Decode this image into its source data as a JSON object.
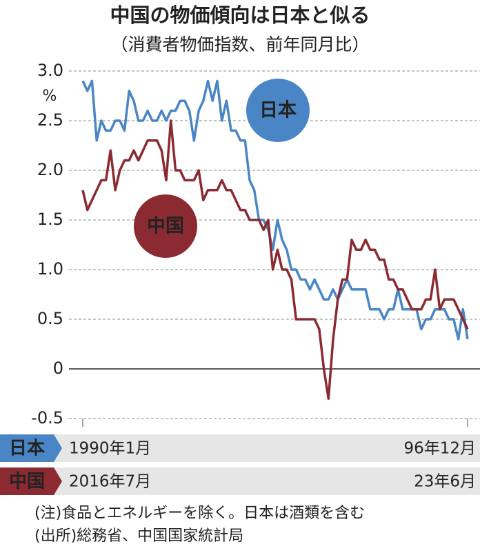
{
  "chart_data": {
    "type": "line",
    "title": "中国の物価傾向は日本と似る",
    "subtitle": "（消費者物価指数、前年同月比）",
    "y_unit": "%",
    "ylim": [
      -0.5,
      3
    ],
    "yticks": [
      {
        "value": 3,
        "label": "3.0"
      },
      2.5,
      {
        "value": 2,
        "label": "2.0"
      },
      1.5,
      {
        "value": 1,
        "label": "1.0"
      },
      0.5,
      0,
      -0.5
    ],
    "grid": true,
    "series": [
      {
        "name": "日本",
        "color": "#4a86c5",
        "start_label": "1990年1月",
        "end_label": "96年12月",
        "values": [
          2.9,
          2.8,
          2.9,
          2.3,
          2.5,
          2.4,
          2.4,
          2.5,
          2.5,
          2.4,
          2.8,
          2.7,
          2.5,
          2.5,
          2.6,
          2.5,
          2.5,
          2.6,
          2.5,
          2.6,
          2.6,
          2.7,
          2.7,
          2.6,
          2.3,
          2.6,
          2.7,
          2.9,
          2.7,
          2.9,
          2.5,
          2.7,
          2.4,
          2.4,
          2.3,
          2.3,
          1.9,
          1.8,
          1.5,
          1.5,
          1.4,
          1.2,
          1.5,
          1.3,
          1.2,
          1.0,
          1.0,
          0.9,
          0.9,
          0.8,
          0.9,
          0.8,
          0.7,
          0.7,
          0.8,
          0.7,
          0.8,
          0.9,
          0.8,
          0.8,
          0.8,
          0.8,
          0.6,
          0.6,
          0.6,
          0.5,
          0.6,
          0.6,
          0.8,
          0.6,
          0.6,
          0.6,
          0.6,
          0.4,
          0.5,
          0.5,
          0.6,
          0.6,
          0.6,
          0.5,
          0.5,
          0.3,
          0.6,
          0.3
        ]
      },
      {
        "name": "中国",
        "color": "#8b2a31",
        "start_label": "2016年7月",
        "end_label": "23年6月",
        "values": [
          1.8,
          1.6,
          1.7,
          1.8,
          1.9,
          1.9,
          2.2,
          1.8,
          2.0,
          2.1,
          2.1,
          2.2,
          2.1,
          2.2,
          2.3,
          2.3,
          2.3,
          2.2,
          1.9,
          2.5,
          2.0,
          2.0,
          1.9,
          1.9,
          1.9,
          2.0,
          1.7,
          1.8,
          1.8,
          1.8,
          1.9,
          1.8,
          1.8,
          1.7,
          1.6,
          1.6,
          1.5,
          1.5,
          1.5,
          1.4,
          1.5,
          1.0,
          1.2,
          1.0,
          1.0,
          0.9,
          0.5,
          0.5,
          0.5,
          0.5,
          0.5,
          0.4,
          0.0,
          -0.3,
          0.3,
          0.7,
          0.9,
          0.9,
          1.3,
          1.2,
          1.2,
          1.3,
          1.2,
          1.2,
          1.1,
          1.1,
          0.9,
          0.9,
          0.8,
          0.8,
          0.7,
          0.6,
          0.6,
          0.6,
          0.7,
          0.7,
          1.0,
          0.6,
          0.7,
          0.7,
          0.7,
          0.6,
          0.5,
          0.4
        ]
      }
    ],
    "notes": [
      "(注)食品とエネルギーを除く。日本は酒類を含む",
      "(出所)総務省、中国国家統計局"
    ]
  }
}
